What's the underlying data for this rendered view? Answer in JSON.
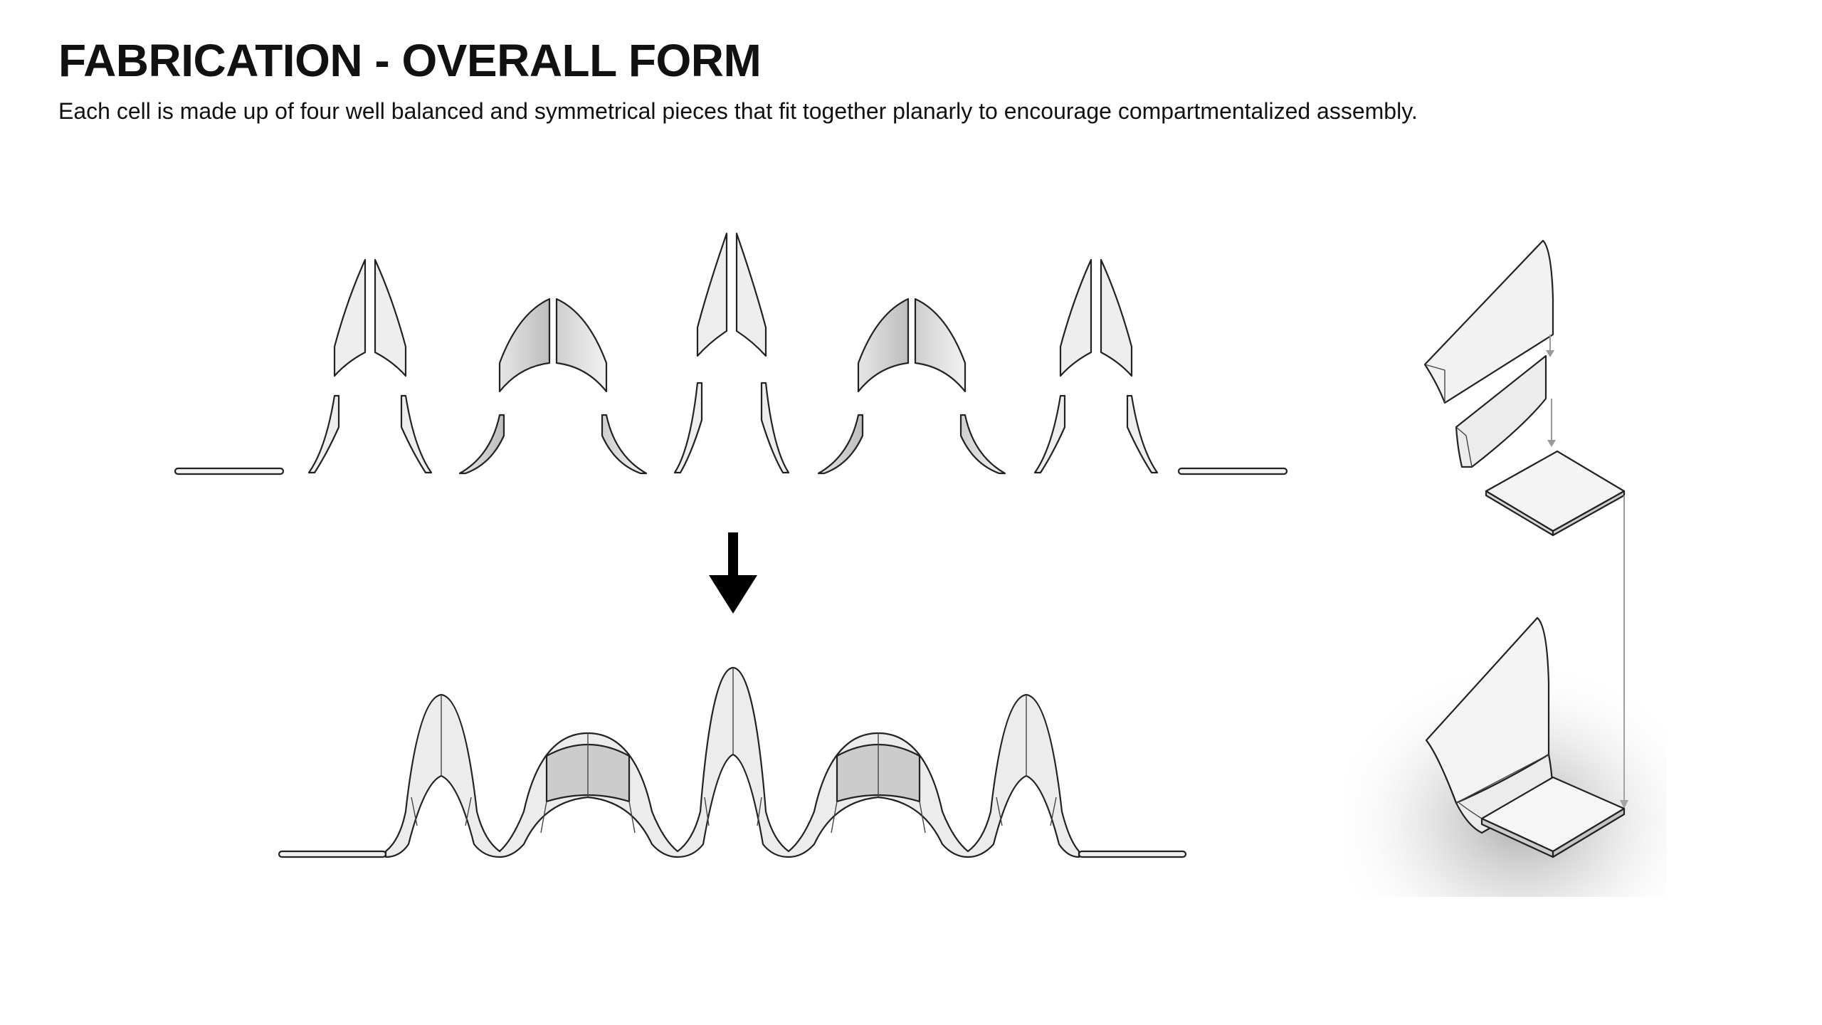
{
  "header": {
    "title": "FABRICATION - OVERALL FORM",
    "subtitle": "Each cell is made up of four well balanced and symmetrical pieces that fit together planarly to encourage compartmentalized assembly."
  },
  "diagram": {
    "exploded_row": {
      "cells": [
        "tall",
        "wide",
        "tallest",
        "wide",
        "tall"
      ],
      "end_plates": 2
    },
    "assembled_row": {
      "cells": [
        "tall",
        "wide",
        "tallest",
        "wide",
        "tall"
      ],
      "end_plates": 2
    },
    "arrow_direction": "down",
    "axonometric": {
      "exploded_pieces": 3,
      "assembled_corner": true
    }
  }
}
